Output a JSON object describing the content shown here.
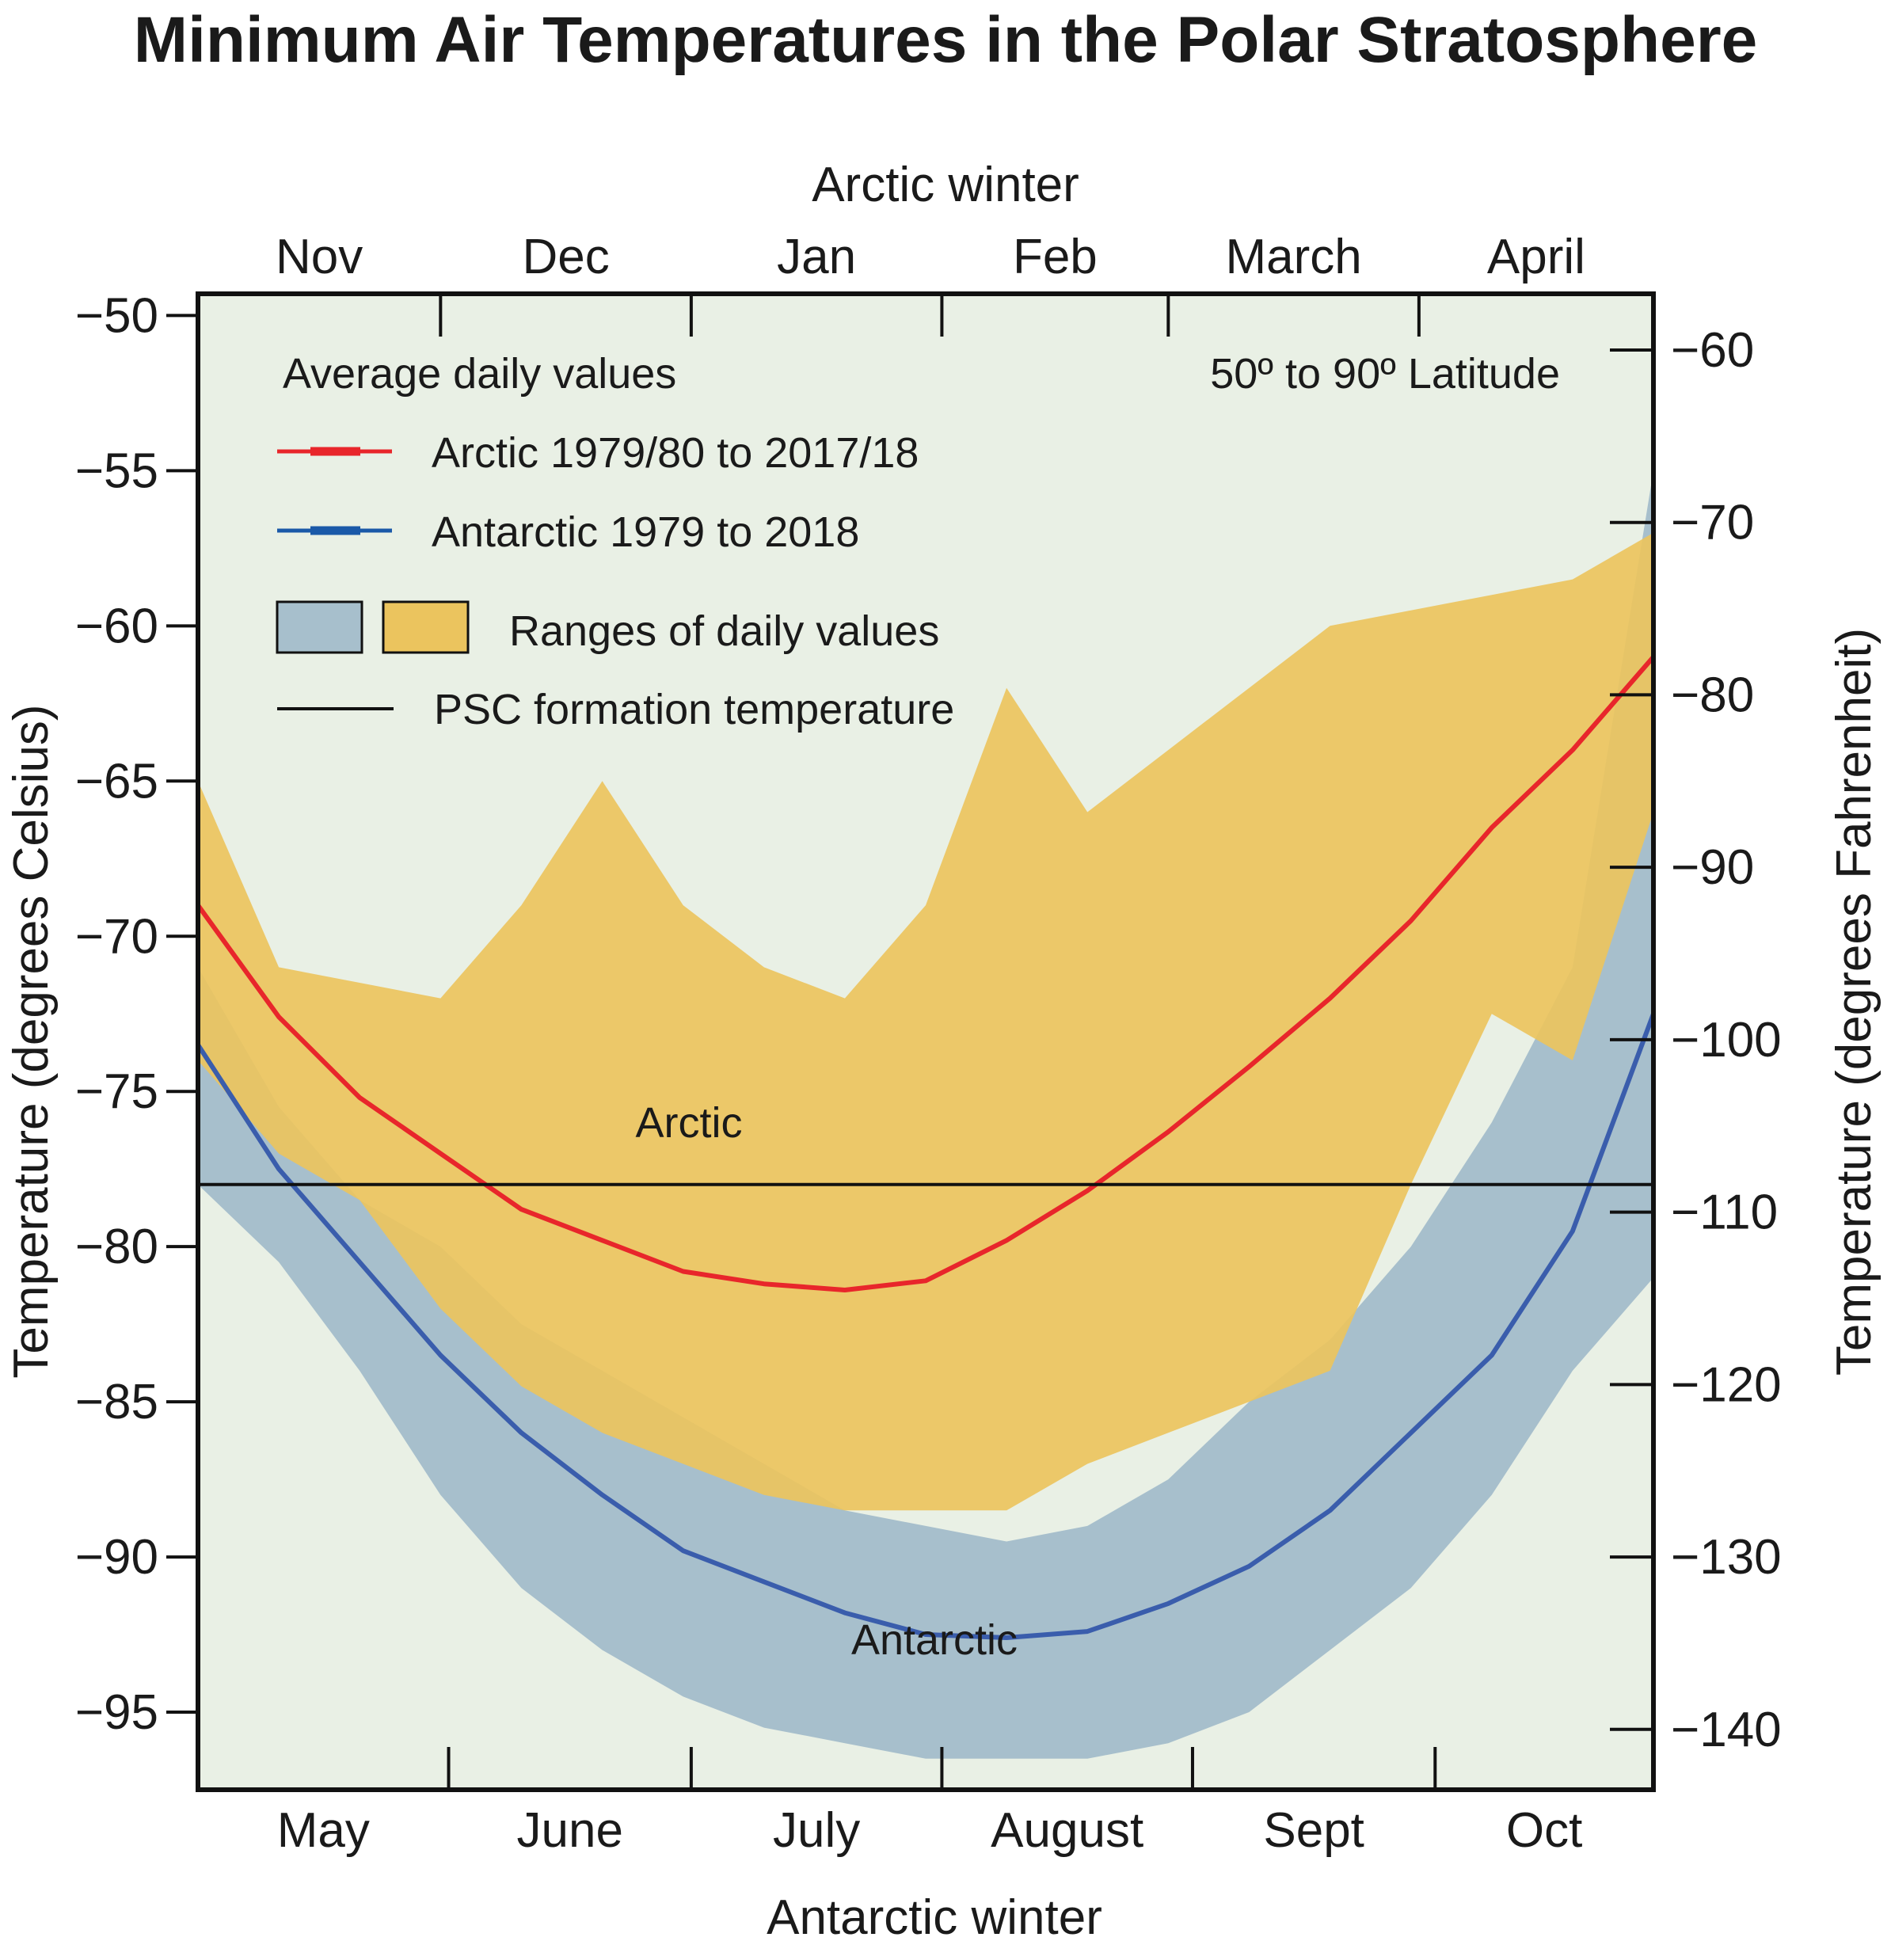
{
  "chart_data": {
    "type": "area",
    "title": "Minimum Air Temperatures in the Polar Stratosphere",
    "top_axis_title": "Arctic winter",
    "bottom_axis_title": "Antarctic winter",
    "ylabel_left": "Temperature (degrees Celsius)",
    "ylabel_right": "Temperature (degrees Fahrenheit)",
    "top_months": [
      "Nov",
      "Dec",
      "Jan",
      "Feb",
      "March",
      "April"
    ],
    "bottom_months": [
      "May",
      "June",
      "July",
      "August",
      "Sept",
      "Oct"
    ],
    "y_left_ticks": [
      "−50",
      "−55",
      "−60",
      "−65",
      "−70",
      "−75",
      "−80",
      "−85",
      "−90",
      "−95"
    ],
    "y_left_tick_values": [
      -50,
      -55,
      -60,
      -65,
      -70,
      -75,
      -80,
      -85,
      -90,
      -95
    ],
    "y_right_ticks": [
      "−60",
      "−70",
      "−80",
      "−90",
      "−100",
      "−110",
      "−120",
      "−130",
      "−140"
    ],
    "y_right_tick_values": [
      -60,
      -70,
      -80,
      -90,
      -100,
      -110,
      -120,
      -130,
      -140
    ],
    "ylim": [
      -97.5,
      -49.3
    ],
    "xlim": [
      0,
      180
    ],
    "grid": false,
    "legend": {
      "heading": "Average daily values",
      "note": "50º to 90º Latitude",
      "arctic_label": "Arctic 1979/80 to 2017/18",
      "antarctic_label": "Antarctic 1979 to 2018",
      "ranges_label": "Ranges of daily values",
      "psc_label": "PSC formation temperature"
    },
    "annotations": {
      "arctic": "Arctic",
      "antarctic": "Antarctic"
    },
    "psc_temperature": -78,
    "x_days": [
      0,
      10,
      20,
      30,
      40,
      50,
      60,
      70,
      80,
      90,
      100,
      110,
      120,
      130,
      140,
      150,
      160,
      170,
      180
    ],
    "series": [
      {
        "name": "Arctic 1979/80 to 2017/18",
        "color": "#e8262b",
        "mean": [
          -69,
          -72.6,
          -75.2,
          -77,
          -78.8,
          -79.8,
          -80.8,
          -81.2,
          -81.4,
          -81.1,
          -79.8,
          -78.2,
          -76.3,
          -74.2,
          -72,
          -69.5,
          -66.5,
          -64,
          -61
        ],
        "range_max": [
          -65,
          -71,
          -71.5,
          -72,
          -69,
          -65,
          -69,
          -71,
          -72,
          -69,
          -62,
          -66,
          -64,
          -62,
          -60,
          -59.5,
          -59,
          -58.5,
          -57
        ],
        "range_min": [
          -74,
          -77,
          -78.5,
          -82,
          -84.5,
          -86,
          -87,
          -88,
          -88.5,
          -88.5,
          -88.5,
          -87,
          -86,
          -85,
          -84,
          -78,
          -72.5,
          -74,
          -66
        ]
      },
      {
        "name": "Antarctic 1979 to 2018",
        "color": "#3a5dac",
        "mean": [
          -73.5,
          -77.5,
          -80.5,
          -83.5,
          -86,
          -88,
          -89.8,
          -90.8,
          -91.8,
          -92.5,
          -92.6,
          -92.4,
          -91.5,
          -90.3,
          -88.5,
          -86,
          -83.5,
          -79.5,
          -72.5
        ],
        "range_max": [
          -71,
          -75.5,
          -78.5,
          -80,
          -82.5,
          -84,
          -85.5,
          -87,
          -88.5,
          -89,
          -89.5,
          -89,
          -87.5,
          -85,
          -83,
          -80,
          -76,
          -71,
          -55
        ],
        "range_min": [
          -78,
          -80.5,
          -84,
          -88,
          -91,
          -93,
          -94.5,
          -95.5,
          -96,
          -96.5,
          -96.5,
          -96.5,
          -96,
          -95,
          -93,
          -91,
          -88,
          -84,
          -81
        ]
      }
    ],
    "colors": {
      "plot_bg": "#e9f0e5",
      "arctic_range": "#ebc45e",
      "antarctic_range": "#a7bfcc",
      "overlap": "#b3a15e",
      "psc_line": "#111111"
    }
  }
}
